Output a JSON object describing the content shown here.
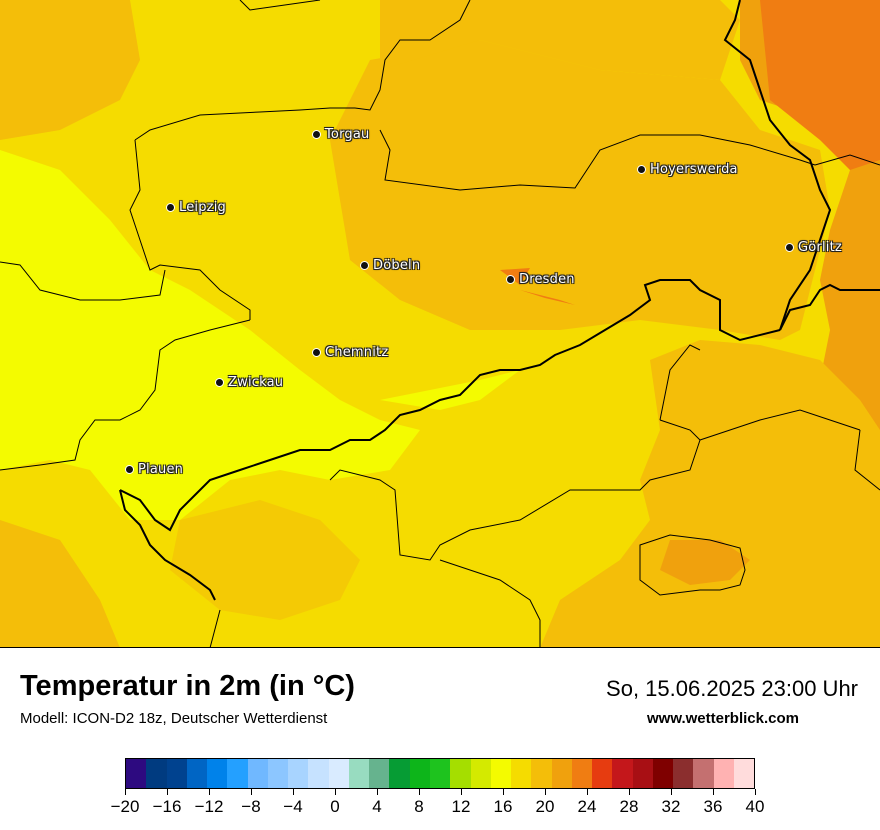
{
  "map": {
    "title": "Temperatur in 2m (in °C)",
    "model": "Modell: ICON-D2 18z, Deutscher Wetterdienst",
    "datetime": "So, 15.06.2025 23:00 Uhr",
    "website": "www.wetterblick.com",
    "cities": [
      {
        "name": "Torgau"
      },
      {
        "name": "Leipzig"
      },
      {
        "name": "Hoyerswerda"
      },
      {
        "name": "Görlitz"
      },
      {
        "name": "Döbeln"
      },
      {
        "name": "Dresden"
      },
      {
        "name": "Chemnitz"
      },
      {
        "name": "Zwickau"
      },
      {
        "name": "Plauen"
      }
    ]
  },
  "legend": {
    "colors": [
      "#2d0a80",
      "#003b80",
      "#00428f",
      "#0065c4",
      "#0082ea",
      "#24a0ff",
      "#70b8ff",
      "#8cc6ff",
      "#a8d4ff",
      "#c6e2ff",
      "#d9ebff",
      "#98dcc0",
      "#66b38e",
      "#069c34",
      "#0db51a",
      "#1ec31e",
      "#a5de00",
      "#d4ea00",
      "#f4fb00",
      "#f5dc00",
      "#f4be09",
      "#f0a10d",
      "#f07d12",
      "#e63c10",
      "#c4171b",
      "#a80f14",
      "#7f0000",
      "#8b2e2e",
      "#c47070",
      "#ffb2b2",
      "#ffdcdc"
    ],
    "ticks": [
      "−20",
      "−16",
      "−12",
      "−8",
      "−4",
      "0",
      "4",
      "8",
      "12",
      "16",
      "20",
      "24",
      "28",
      "32",
      "36",
      "40"
    ]
  }
}
